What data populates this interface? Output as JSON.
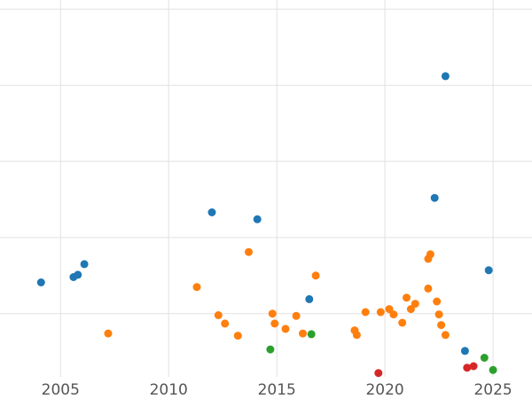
{
  "chart_data": {
    "type": "scatter",
    "title": "",
    "xlabel": "",
    "ylabel": "",
    "grid": true,
    "legend": "none",
    "background": "#ffffff",
    "grid_color": "#e1e1e1",
    "tick_color": "#555555",
    "tick_font_size": 17,
    "point_radius": 4.5,
    "x_ticks": [
      2005,
      2010,
      2015,
      2020,
      2025
    ],
    "xlim": [
      2002.2,
      2026.8
    ],
    "ylim": [
      0.17,
      5.12
    ],
    "y_gridlines": [
      1,
      2,
      3,
      4,
      5
    ],
    "y_axis_note": "y tick labels are cropped out of view; y values are in gridline units estimated from unlabeled horizontal gridlines",
    "series": [
      {
        "name": "blue",
        "color": "#1f77b4",
        "points": [
          [
            2004.1,
            1.41
          ],
          [
            2005.6,
            1.48
          ],
          [
            2005.8,
            1.51
          ],
          [
            2006.1,
            1.65
          ],
          [
            2012.0,
            2.33
          ],
          [
            2014.1,
            2.24
          ],
          [
            2016.5,
            1.19
          ],
          [
            2022.3,
            2.52
          ],
          [
            2022.8,
            4.12
          ],
          [
            2023.7,
            0.51
          ],
          [
            2024.8,
            1.57
          ]
        ]
      },
      {
        "name": "orange",
        "color": "#ff7f0e",
        "points": [
          [
            2007.2,
            0.74
          ],
          [
            2011.3,
            1.35
          ],
          [
            2012.3,
            0.98
          ],
          [
            2012.6,
            0.87
          ],
          [
            2013.2,
            0.71
          ],
          [
            2013.7,
            1.81
          ],
          [
            2014.8,
            1.0
          ],
          [
            2014.9,
            0.87
          ],
          [
            2015.4,
            0.8
          ],
          [
            2015.9,
            0.97
          ],
          [
            2016.2,
            0.74
          ],
          [
            2016.8,
            1.5
          ],
          [
            2018.6,
            0.78
          ],
          [
            2018.7,
            0.72
          ],
          [
            2019.1,
            1.02
          ],
          [
            2019.8,
            1.02
          ],
          [
            2020.2,
            1.06
          ],
          [
            2020.4,
            0.99
          ],
          [
            2020.8,
            0.88
          ],
          [
            2021.0,
            1.21
          ],
          [
            2021.2,
            1.06
          ],
          [
            2021.4,
            1.13
          ],
          [
            2022.0,
            1.72
          ],
          [
            2022.1,
            1.78
          ],
          [
            2022.0,
            1.33
          ],
          [
            2022.4,
            1.16
          ],
          [
            2022.5,
            0.99
          ],
          [
            2022.6,
            0.85
          ],
          [
            2022.8,
            0.72
          ]
        ]
      },
      {
        "name": "green",
        "color": "#2ca02c",
        "points": [
          [
            2014.7,
            0.53
          ],
          [
            2016.6,
            0.73
          ],
          [
            2024.6,
            0.42
          ],
          [
            2025.0,
            0.26
          ]
        ]
      },
      {
        "name": "red",
        "color": "#d62728",
        "points": [
          [
            2019.7,
            0.22
          ],
          [
            2023.8,
            0.29
          ],
          [
            2024.1,
            0.31
          ]
        ]
      }
    ]
  }
}
